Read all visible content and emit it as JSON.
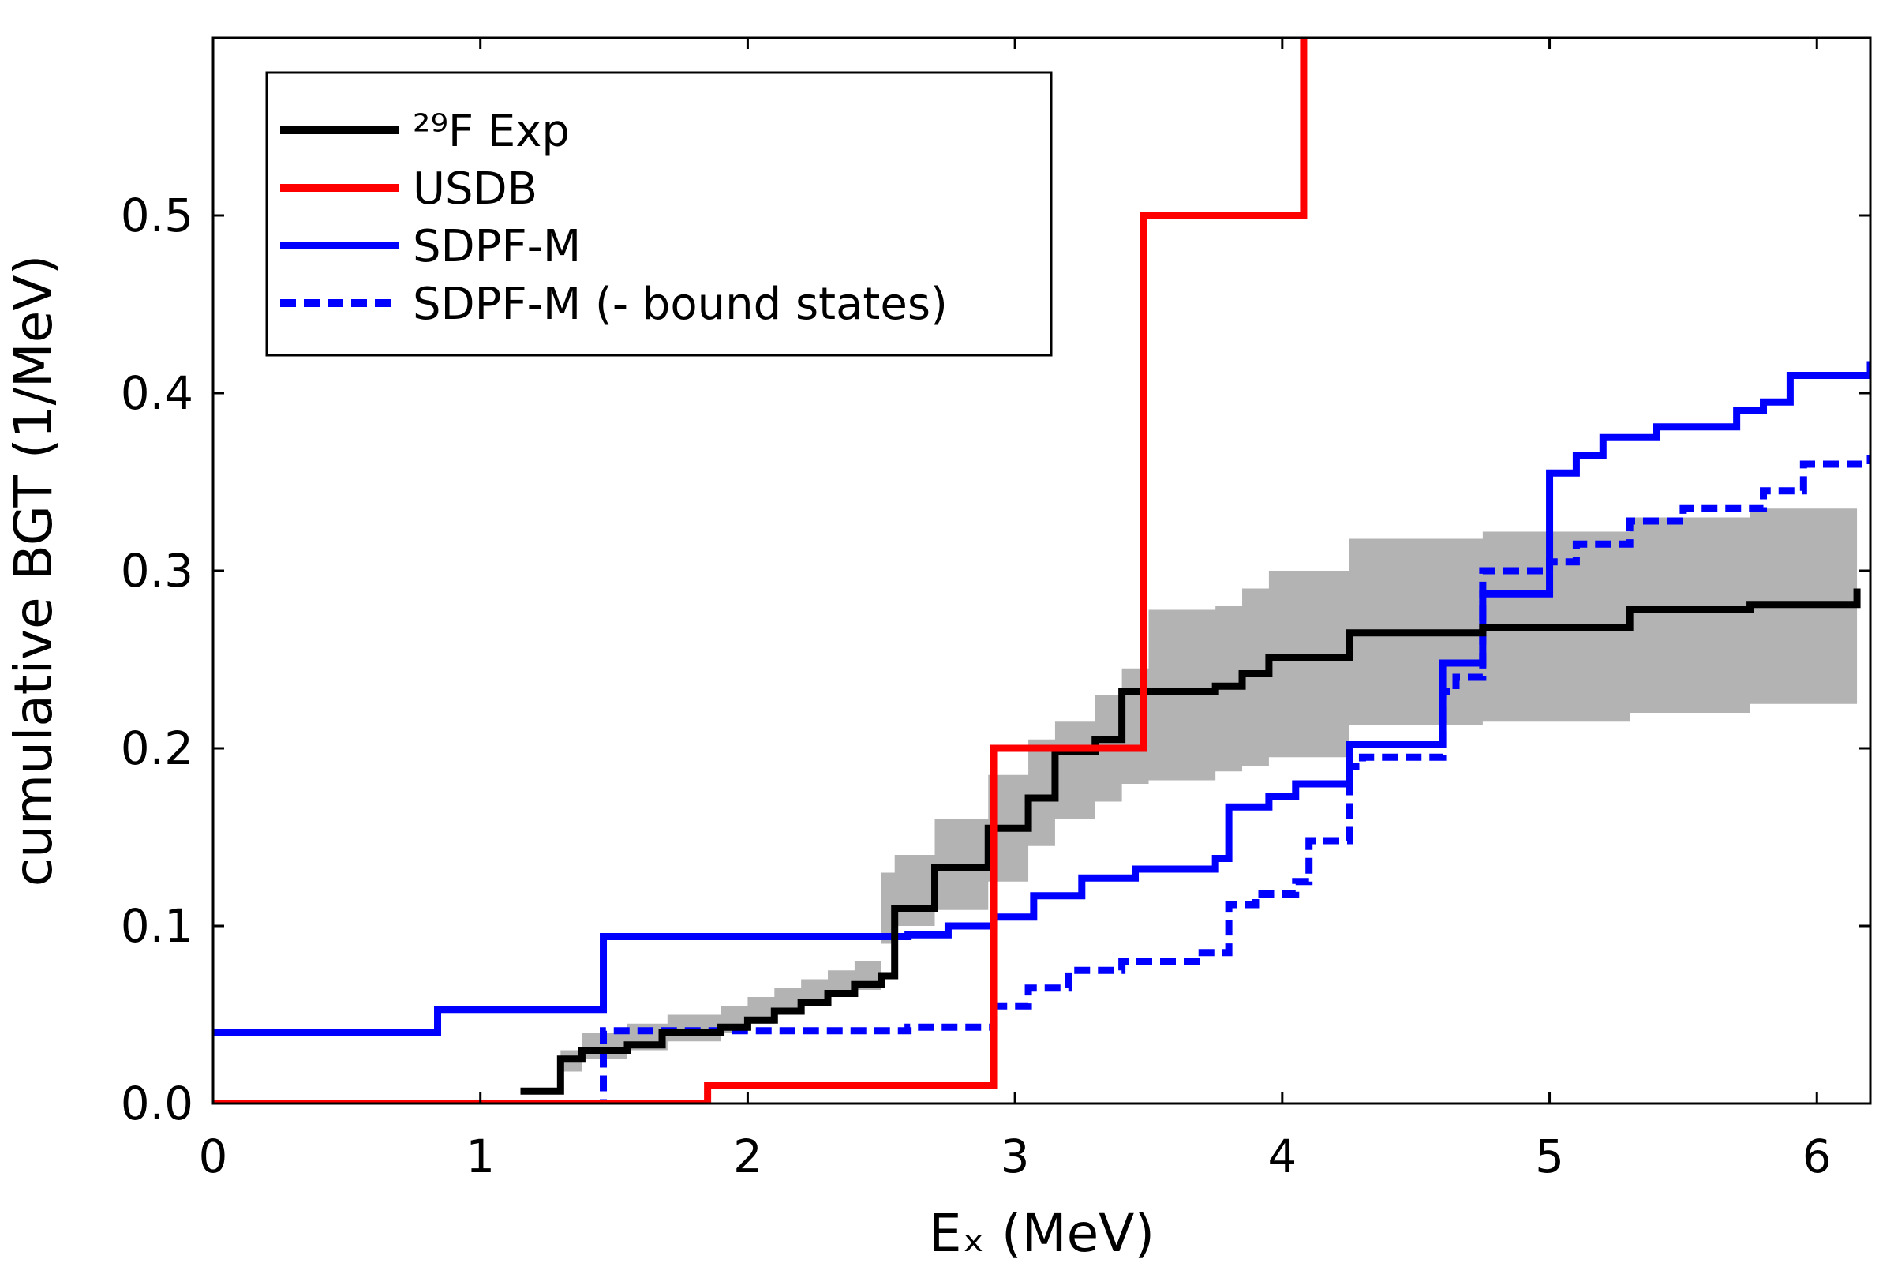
{
  "chart_data": {
    "type": "line",
    "xlabel": "Eₓ (MeV)",
    "ylabel": "cumulative BGT (1/MeV)",
    "xlim": [
      0,
      6.2
    ],
    "ylim": [
      0,
      0.6
    ],
    "xticks": [
      0,
      1,
      2,
      3,
      4,
      5,
      6
    ],
    "xtick_labels": [
      "0",
      "1",
      "2",
      "3",
      "4",
      "5",
      "6"
    ],
    "yticks": [
      0.0,
      0.1,
      0.2,
      0.3,
      0.4,
      0.5
    ],
    "ytick_labels": [
      "0.0",
      "0.1",
      "0.2",
      "0.3",
      "0.4",
      "0.5"
    ],
    "grid": false,
    "legend_position": "top-left",
    "exp_band": {
      "color": "#b3b3b3",
      "x": [
        1.3,
        1.38,
        1.55,
        1.7,
        1.9,
        2.0,
        2.1,
        2.2,
        2.3,
        2.4,
        2.5,
        2.55,
        2.7,
        2.9,
        3.05,
        3.15,
        3.3,
        3.4,
        3.5,
        3.75,
        3.85,
        3.95,
        4.25,
        4.75,
        5.3,
        5.75,
        6.15
      ],
      "lower": [
        0.018,
        0.025,
        0.03,
        0.035,
        0.04,
        0.045,
        0.05,
        0.055,
        0.06,
        0.064,
        0.09,
        0.1,
        0.109,
        0.125,
        0.145,
        0.16,
        0.17,
        0.18,
        0.182,
        0.187,
        0.19,
        0.195,
        0.213,
        0.215,
        0.22,
        0.225,
        0.225
      ],
      "upper": [
        0.03,
        0.04,
        0.045,
        0.05,
        0.055,
        0.06,
        0.065,
        0.07,
        0.075,
        0.08,
        0.13,
        0.14,
        0.16,
        0.185,
        0.205,
        0.215,
        0.23,
        0.245,
        0.278,
        0.28,
        0.29,
        0.3,
        0.318,
        0.322,
        0.33,
        0.335,
        0.338
      ]
    },
    "series": [
      {
        "name": "²⁹F Exp",
        "color": "#000000",
        "dashed": false,
        "x": [
          1.15,
          1.3,
          1.38,
          1.55,
          1.68,
          1.9,
          2.0,
          2.1,
          2.2,
          2.3,
          2.4,
          2.5,
          2.55,
          2.7,
          2.9,
          3.05,
          3.15,
          3.3,
          3.4,
          3.5,
          3.75,
          3.85,
          3.95,
          4.25,
          4.75,
          5.3,
          5.75,
          6.15,
          6.15
        ],
        "y": [
          0.007,
          0.025,
          0.03,
          0.033,
          0.04,
          0.043,
          0.047,
          0.052,
          0.057,
          0.062,
          0.067,
          0.072,
          0.11,
          0.133,
          0.155,
          0.172,
          0.198,
          0.205,
          0.232,
          0.232,
          0.235,
          0.242,
          0.251,
          0.265,
          0.268,
          0.278,
          0.281,
          0.283,
          0.29
        ]
      },
      {
        "name": "USDB",
        "color": "#ff0000",
        "dashed": false,
        "x": [
          0.0,
          1.85,
          2.92,
          3.48,
          4.08,
          4.08
        ],
        "y": [
          0.0,
          0.01,
          0.2,
          0.5,
          0.5,
          0.6
        ]
      },
      {
        "name": "SDPF-M",
        "color": "#0000ff",
        "dashed": false,
        "x": [
          0.0,
          0.84,
          1.46,
          2.6,
          2.75,
          2.92,
          3.07,
          3.25,
          3.45,
          3.75,
          3.8,
          3.95,
          4.05,
          4.25,
          4.6,
          4.75,
          5.0,
          5.1,
          5.2,
          5.4,
          5.7,
          5.8,
          5.9,
          6.2
        ],
        "y": [
          0.04,
          0.053,
          0.094,
          0.095,
          0.1,
          0.105,
          0.117,
          0.127,
          0.132,
          0.138,
          0.167,
          0.173,
          0.18,
          0.202,
          0.248,
          0.287,
          0.355,
          0.365,
          0.375,
          0.381,
          0.39,
          0.395,
          0.41,
          0.418
        ]
      },
      {
        "name": "SDPF-M (- bound states)",
        "color": "#0000ff",
        "dashed": true,
        "x": [
          0.0,
          1.46,
          2.6,
          2.92,
          3.05,
          3.2,
          3.4,
          3.7,
          3.8,
          3.9,
          4.05,
          4.1,
          4.25,
          4.3,
          4.4,
          4.6,
          4.65,
          4.75,
          5.0,
          5.1,
          5.3,
          5.5,
          5.8,
          5.95,
          6.2
        ],
        "y": [
          0.0,
          0.041,
          0.043,
          0.055,
          0.065,
          0.075,
          0.08,
          0.085,
          0.112,
          0.118,
          0.125,
          0.148,
          0.19,
          0.195,
          0.195,
          0.232,
          0.24,
          0.3,
          0.305,
          0.315,
          0.328,
          0.335,
          0.345,
          0.36,
          0.365
        ]
      }
    ]
  }
}
